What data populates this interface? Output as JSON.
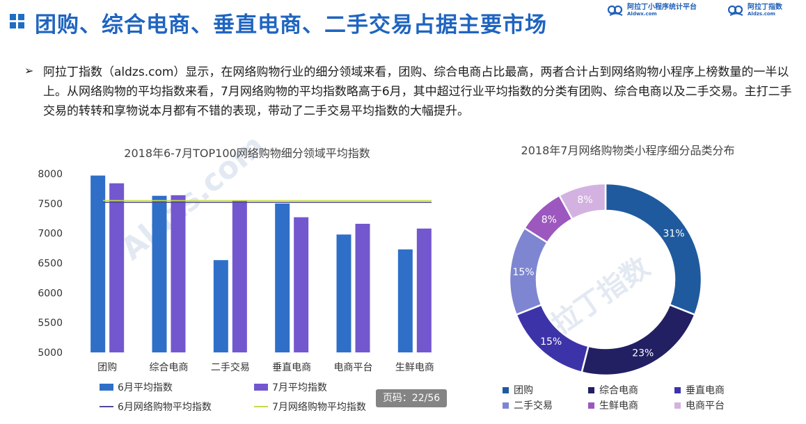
{
  "header": {
    "title": "团购、综合电商、垂直电商、二手交易占据主要市场",
    "logo1_name": "阿拉丁小程序统计平台",
    "logo1_url": "Aldwx.com",
    "logo2_name": "阿拉丁指数",
    "logo2_url": "Aldzs.com"
  },
  "body_text": "阿拉丁指数（aldzs.com）显示，在网络购物行业的细分领域来看，团购、综合电商占比最高，两者合计占到网络购物小程序上榜数量的一半以上。从网络购物的平均指数来看，7月网络购物的平均指数略高于6月，其中超过行业平均指数的分类有团购、综合电商以及二手交易。主打二手交易的转转和享物说本月都有不错的表现，带动了二手交易平均指数的大幅提升。",
  "watermark": {
    "url": "Aldzs.com",
    "name": "阿拉丁指数"
  },
  "page_indicator": "页码：22/56",
  "colors": {
    "june_bar": "#2f6fc8",
    "july_bar": "#7357cf",
    "june_avg_line": "#4a4a9a",
    "july_avg_line": "#c8d84a",
    "title_blue": "#1f64c0"
  },
  "chart_data": [
    {
      "type": "bar",
      "title": "2018年6-7月TOP100网络购物细分领域平均指数",
      "categories": [
        "团购",
        "综合电商",
        "二手交易",
        "垂直电商",
        "电商平台",
        "生鲜电商"
      ],
      "series": [
        {
          "name": "6月平均指数",
          "values": [
            7970,
            7630,
            6550,
            7500,
            6980,
            6730
          ]
        },
        {
          "name": "7月平均指数",
          "values": [
            7840,
            7640,
            7550,
            7270,
            7160,
            7080
          ]
        }
      ],
      "reference_lines": [
        {
          "name": "6月网络购物平均指数",
          "value": 7520
        },
        {
          "name": "7月网络购物平均指数",
          "value": 7550
        }
      ],
      "yticks": [
        "8000",
        "7500",
        "7000",
        "6500",
        "6000",
        "5500",
        "5000"
      ],
      "ylim": [
        5000,
        8000
      ],
      "legend_position": "bottom"
    },
    {
      "type": "pie",
      "donut": true,
      "title": "2018年7月网络购物类小程序细分品类分布",
      "slices": [
        {
          "name": "团购",
          "value": 31,
          "label": "31%",
          "color": "#1f5a9e"
        },
        {
          "name": "综合电商",
          "value": 23,
          "label": "23%",
          "color": "#221f63"
        },
        {
          "name": "垂直电商",
          "value": 15,
          "label": "15%",
          "color": "#3d33a8"
        },
        {
          "name": "二手交易",
          "value": 15,
          "label": "15%",
          "color": "#7e86d1"
        },
        {
          "name": "生鲜电商",
          "value": 8,
          "label": "8%",
          "color": "#9c58be"
        },
        {
          "name": "电商平台",
          "value": 8,
          "label": "8%",
          "color": "#d3b2e1"
        }
      ],
      "legend_position": "bottom"
    }
  ]
}
